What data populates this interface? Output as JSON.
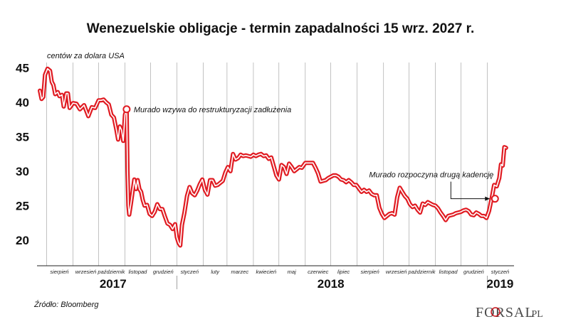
{
  "chart_data": {
    "type": "line",
    "title": "Wenezuelskie obligacje - termin zapadalności 15 wrz. 2027 r.",
    "ylabel": "centów za dolara USA",
    "ylim": [
      17.5,
      46
    ],
    "yticks": [
      45,
      40,
      35,
      30,
      25,
      20
    ],
    "xrange": [
      "2017-07-24",
      "2019-01-29"
    ],
    "month_ticks": [
      {
        "label": "sierpień",
        "date": "2017-08-16"
      },
      {
        "label": "wrzesień",
        "date": "2017-09-16"
      },
      {
        "label": "październik",
        "date": "2017-10-16"
      },
      {
        "label": "listopad",
        "date": "2017-11-16"
      },
      {
        "label": "grudzień",
        "date": "2017-12-16"
      },
      {
        "label": "styczeń",
        "date": "2018-01-16"
      },
      {
        "label": "luty",
        "date": "2018-02-15"
      },
      {
        "label": "marzec",
        "date": "2018-03-16"
      },
      {
        "label": "kwiecień",
        "date": "2018-04-16"
      },
      {
        "label": "maj",
        "date": "2018-05-16"
      },
      {
        "label": "czerwiec",
        "date": "2018-06-16"
      },
      {
        "label": "lipiec",
        "date": "2018-07-16"
      },
      {
        "label": "sierpień",
        "date": "2018-08-16"
      },
      {
        "label": "wrzesień",
        "date": "2018-09-16"
      },
      {
        "label": "październik",
        "date": "2018-10-16"
      },
      {
        "label": "listopad",
        "date": "2018-11-16"
      },
      {
        "label": "grudzień",
        "date": "2018-12-16"
      },
      {
        "label": "styczeń",
        "date": "2019-01-16"
      }
    ],
    "year_labels": [
      "2017",
      "2018",
      "2019"
    ],
    "grid": "vertical",
    "series": [
      {
        "color": "#e01b22",
        "points": [
          [
            "2017-07-24",
            41.7
          ],
          [
            "2017-07-26",
            40.5
          ],
          [
            "2017-07-28",
            40.8
          ],
          [
            "2017-07-30",
            44.0
          ],
          [
            "2017-08-02",
            44.9
          ],
          [
            "2017-08-05",
            44.6
          ],
          [
            "2017-08-07",
            43.0
          ],
          [
            "2017-08-09",
            42.5
          ],
          [
            "2017-08-11",
            41.2
          ],
          [
            "2017-08-14",
            41.5
          ],
          [
            "2017-08-16",
            40.9
          ],
          [
            "2017-08-19",
            41.1
          ],
          [
            "2017-08-21",
            39.4
          ],
          [
            "2017-08-24",
            41.3
          ],
          [
            "2017-08-26",
            41.3
          ],
          [
            "2017-08-28",
            39.2
          ],
          [
            "2017-09-01",
            39.9
          ],
          [
            "2017-09-05",
            39.8
          ],
          [
            "2017-09-09",
            39.0
          ],
          [
            "2017-09-14",
            39.6
          ],
          [
            "2017-09-19",
            38.0
          ],
          [
            "2017-09-23",
            39.3
          ],
          [
            "2017-09-27",
            39.2
          ],
          [
            "2017-10-01",
            40.3
          ],
          [
            "2017-10-04",
            40.3
          ],
          [
            "2017-10-07",
            40.4
          ],
          [
            "2017-10-10",
            40.0
          ],
          [
            "2017-10-13",
            39.7
          ],
          [
            "2017-10-16",
            38.2
          ],
          [
            "2017-10-19",
            37.8
          ],
          [
            "2017-10-22",
            36.0
          ],
          [
            "2017-10-24",
            34.6
          ],
          [
            "2017-10-26",
            36.5
          ],
          [
            "2017-10-28",
            36.0
          ],
          [
            "2017-10-30",
            34.4
          ],
          [
            "2017-11-01",
            38.2
          ],
          [
            "2017-11-03",
            39.0
          ],
          [
            "2017-11-04",
            30.0
          ],
          [
            "2017-11-05",
            25.0
          ],
          [
            "2017-11-06",
            23.7
          ],
          [
            "2017-11-08",
            25.3
          ],
          [
            "2017-11-10",
            27.0
          ],
          [
            "2017-11-12",
            28.8
          ],
          [
            "2017-11-14",
            27.4
          ],
          [
            "2017-11-16",
            28.7
          ],
          [
            "2017-11-18",
            27.4
          ],
          [
            "2017-11-20",
            27.0
          ],
          [
            "2017-11-22",
            25.8
          ],
          [
            "2017-11-24",
            25.0
          ],
          [
            "2017-11-27",
            25.1
          ],
          [
            "2017-11-30",
            23.8
          ],
          [
            "2017-12-03",
            23.5
          ],
          [
            "2017-12-06",
            24.1
          ],
          [
            "2017-12-09",
            25.2
          ],
          [
            "2017-12-12",
            24.5
          ],
          [
            "2017-12-15",
            24.5
          ],
          [
            "2017-12-18",
            23.4
          ],
          [
            "2017-12-21",
            22.4
          ],
          [
            "2017-12-24",
            22.2
          ],
          [
            "2017-12-27",
            21.6
          ],
          [
            "2017-12-30",
            22.3
          ],
          [
            "2018-01-01",
            20.4
          ],
          [
            "2018-01-03",
            19.6
          ],
          [
            "2018-01-05",
            19.2
          ],
          [
            "2018-01-07",
            22.2
          ],
          [
            "2018-01-10",
            24.0
          ],
          [
            "2018-01-13",
            26.4
          ],
          [
            "2018-01-16",
            27.7
          ],
          [
            "2018-01-19",
            26.8
          ],
          [
            "2018-01-22",
            26.5
          ],
          [
            "2018-01-25",
            27.2
          ],
          [
            "2018-01-28",
            28.1
          ],
          [
            "2018-01-31",
            28.8
          ],
          [
            "2018-02-03",
            27.3
          ],
          [
            "2018-02-06",
            26.6
          ],
          [
            "2018-02-09",
            28.7
          ],
          [
            "2018-02-12",
            28.7
          ],
          [
            "2018-02-15",
            27.9
          ],
          [
            "2018-02-18",
            28.0
          ],
          [
            "2018-02-21",
            28.3
          ],
          [
            "2018-02-24",
            28.6
          ],
          [
            "2018-02-27",
            29.8
          ],
          [
            "2018-03-02",
            30.6
          ],
          [
            "2018-03-05",
            30.0
          ],
          [
            "2018-03-08",
            32.5
          ],
          [
            "2018-03-11",
            31.7
          ],
          [
            "2018-03-14",
            31.9
          ],
          [
            "2018-03-17",
            32.4
          ],
          [
            "2018-03-20",
            32.2
          ],
          [
            "2018-03-23",
            32.3
          ],
          [
            "2018-03-26",
            32.2
          ],
          [
            "2018-03-29",
            32.1
          ],
          [
            "2018-04-01",
            32.4
          ],
          [
            "2018-04-04",
            32.2
          ],
          [
            "2018-04-07",
            32.4
          ],
          [
            "2018-04-10",
            32.5
          ],
          [
            "2018-04-13",
            32.2
          ],
          [
            "2018-04-16",
            32.3
          ],
          [
            "2018-04-19",
            31.8
          ],
          [
            "2018-04-22",
            32.0
          ],
          [
            "2018-04-25",
            30.7
          ],
          [
            "2018-04-28",
            29.4
          ],
          [
            "2018-05-01",
            28.8
          ],
          [
            "2018-05-04",
            30.9
          ],
          [
            "2018-05-07",
            30.6
          ],
          [
            "2018-05-10",
            29.6
          ],
          [
            "2018-05-13",
            31.1
          ],
          [
            "2018-05-16",
            30.6
          ],
          [
            "2018-05-19",
            30.0
          ],
          [
            "2018-05-22",
            30.3
          ],
          [
            "2018-05-25",
            30.6
          ],
          [
            "2018-05-28",
            30.5
          ],
          [
            "2018-06-01",
            31.2
          ],
          [
            "2018-06-04",
            31.2
          ],
          [
            "2018-06-07",
            31.2
          ],
          [
            "2018-06-10",
            31.2
          ],
          [
            "2018-06-13",
            30.5
          ],
          [
            "2018-06-16",
            29.7
          ],
          [
            "2018-06-19",
            28.5
          ],
          [
            "2018-06-22",
            28.6
          ],
          [
            "2018-06-25",
            28.7
          ],
          [
            "2018-06-28",
            29.0
          ],
          [
            "2018-07-01",
            29.2
          ],
          [
            "2018-07-04",
            29.4
          ],
          [
            "2018-07-07",
            29.4
          ],
          [
            "2018-07-10",
            29.2
          ],
          [
            "2018-07-13",
            28.8
          ],
          [
            "2018-07-16",
            28.7
          ],
          [
            "2018-07-19",
            28.4
          ],
          [
            "2018-07-22",
            28.7
          ],
          [
            "2018-07-25",
            28.4
          ],
          [
            "2018-07-28",
            28.0
          ],
          [
            "2018-07-31",
            28.0
          ],
          [
            "2018-08-03",
            27.5
          ],
          [
            "2018-08-06",
            27.0
          ],
          [
            "2018-08-09",
            27.3
          ],
          [
            "2018-08-12",
            27.0
          ],
          [
            "2018-08-15",
            27.2
          ],
          [
            "2018-08-18",
            26.7
          ],
          [
            "2018-08-21",
            26.5
          ],
          [
            "2018-08-24",
            26.5
          ],
          [
            "2018-08-27",
            24.7
          ],
          [
            "2018-08-30",
            23.8
          ],
          [
            "2018-09-02",
            23.2
          ],
          [
            "2018-09-05",
            23.5
          ],
          [
            "2018-09-08",
            23.8
          ],
          [
            "2018-09-11",
            23.9
          ],
          [
            "2018-09-14",
            23.7
          ],
          [
            "2018-09-17",
            26.2
          ],
          [
            "2018-09-20",
            27.6
          ],
          [
            "2018-09-23",
            27.0
          ],
          [
            "2018-09-26",
            26.4
          ],
          [
            "2018-09-29",
            26.0
          ],
          [
            "2018-10-02",
            25.2
          ],
          [
            "2018-10-05",
            24.8
          ],
          [
            "2018-10-08",
            25.0
          ],
          [
            "2018-10-11",
            24.4
          ],
          [
            "2018-10-14",
            24.0
          ],
          [
            "2018-10-17",
            25.3
          ],
          [
            "2018-10-20",
            25.1
          ],
          [
            "2018-10-23",
            25.5
          ],
          [
            "2018-10-26",
            25.3
          ],
          [
            "2018-10-29",
            25.1
          ],
          [
            "2018-11-01",
            25.0
          ],
          [
            "2018-11-04",
            24.6
          ],
          [
            "2018-11-07",
            24.0
          ],
          [
            "2018-11-10",
            23.5
          ],
          [
            "2018-11-13",
            22.9
          ],
          [
            "2018-11-16",
            23.5
          ],
          [
            "2018-11-19",
            23.6
          ],
          [
            "2018-11-22",
            23.7
          ],
          [
            "2018-11-25",
            23.9
          ],
          [
            "2018-11-28",
            24.0
          ],
          [
            "2018-12-01",
            24.1
          ],
          [
            "2018-12-04",
            24.3
          ],
          [
            "2018-12-07",
            24.4
          ],
          [
            "2018-12-10",
            24.2
          ],
          [
            "2018-12-13",
            23.7
          ],
          [
            "2018-12-16",
            23.6
          ],
          [
            "2018-12-19",
            24.0
          ],
          [
            "2018-12-22",
            23.8
          ],
          [
            "2018-12-25",
            23.5
          ],
          [
            "2018-12-28",
            23.5
          ],
          [
            "2018-12-31",
            23.2
          ],
          [
            "2019-01-03",
            24.2
          ],
          [
            "2019-01-06",
            26.0
          ],
          [
            "2019-01-09",
            28.0
          ],
          [
            "2019-01-12",
            27.8
          ],
          [
            "2019-01-15",
            29.0
          ],
          [
            "2019-01-17",
            31.0
          ],
          [
            "2019-01-19",
            30.8
          ],
          [
            "2019-01-21",
            33.5
          ],
          [
            "2019-01-23",
            33.4
          ]
        ]
      }
    ],
    "annotations": [
      {
        "text": "Murado wzywa do restrukturyzacji zadłużenia",
        "date": "2017-11-03",
        "value": 39.0
      },
      {
        "text": "Murado rozpoczyna drugą kadencję",
        "date": "2019-01-10",
        "value": 26.0
      }
    ]
  },
  "source": "Źródło: Bloomberg",
  "logo": {
    "main": "FORSAL",
    "suffix": ".PL"
  },
  "colors": {
    "line": "#e01b22",
    "grid": "#9a9a9a",
    "text": "#111111"
  }
}
